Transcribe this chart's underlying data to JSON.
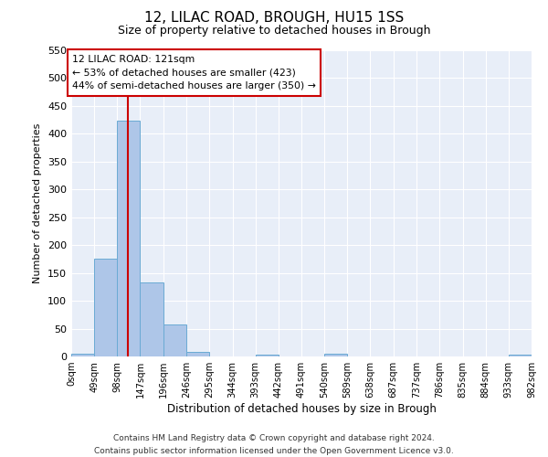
{
  "title1": "12, LILAC ROAD, BROUGH, HU15 1SS",
  "title2": "Size of property relative to detached houses in Brough",
  "xlabel": "Distribution of detached houses by size in Brough",
  "ylabel": "Number of detached properties",
  "bar_color": "#aec6e8",
  "bar_edge_color": "#6aaad4",
  "bins": [
    0,
    49,
    98,
    147,
    196,
    246,
    295,
    344,
    393,
    442,
    491,
    540,
    589,
    638,
    687,
    737,
    786,
    835,
    884,
    933,
    982
  ],
  "bin_labels": [
    "0sqm",
    "49sqm",
    "98sqm",
    "147sqm",
    "196sqm",
    "246sqm",
    "295sqm",
    "344sqm",
    "393sqm",
    "442sqm",
    "491sqm",
    "540sqm",
    "589sqm",
    "638sqm",
    "687sqm",
    "737sqm",
    "786sqm",
    "835sqm",
    "884sqm",
    "933sqm",
    "982sqm"
  ],
  "counts": [
    5,
    175,
    423,
    133,
    57,
    8,
    0,
    0,
    3,
    0,
    0,
    5,
    0,
    0,
    0,
    0,
    0,
    0,
    0,
    3
  ],
  "property_line_x": 121,
  "annotation_line1": "12 LILAC ROAD: 121sqm",
  "annotation_line2": "← 53% of detached houses are smaller (423)",
  "annotation_line3": "44% of semi-detached houses are larger (350) →",
  "vline_color": "#cc0000",
  "annotation_box_color": "#ffffff",
  "annotation_box_edge": "#cc0000",
  "ylim": [
    0,
    550
  ],
  "yticks": [
    0,
    50,
    100,
    150,
    200,
    250,
    300,
    350,
    400,
    450,
    500,
    550
  ],
  "bg_color": "#ffffff",
  "plot_bg_color": "#e8eef8",
  "grid_color": "#ffffff",
  "footer1": "Contains HM Land Registry data © Crown copyright and database right 2024.",
  "footer2": "Contains public sector information licensed under the Open Government Licence v3.0."
}
